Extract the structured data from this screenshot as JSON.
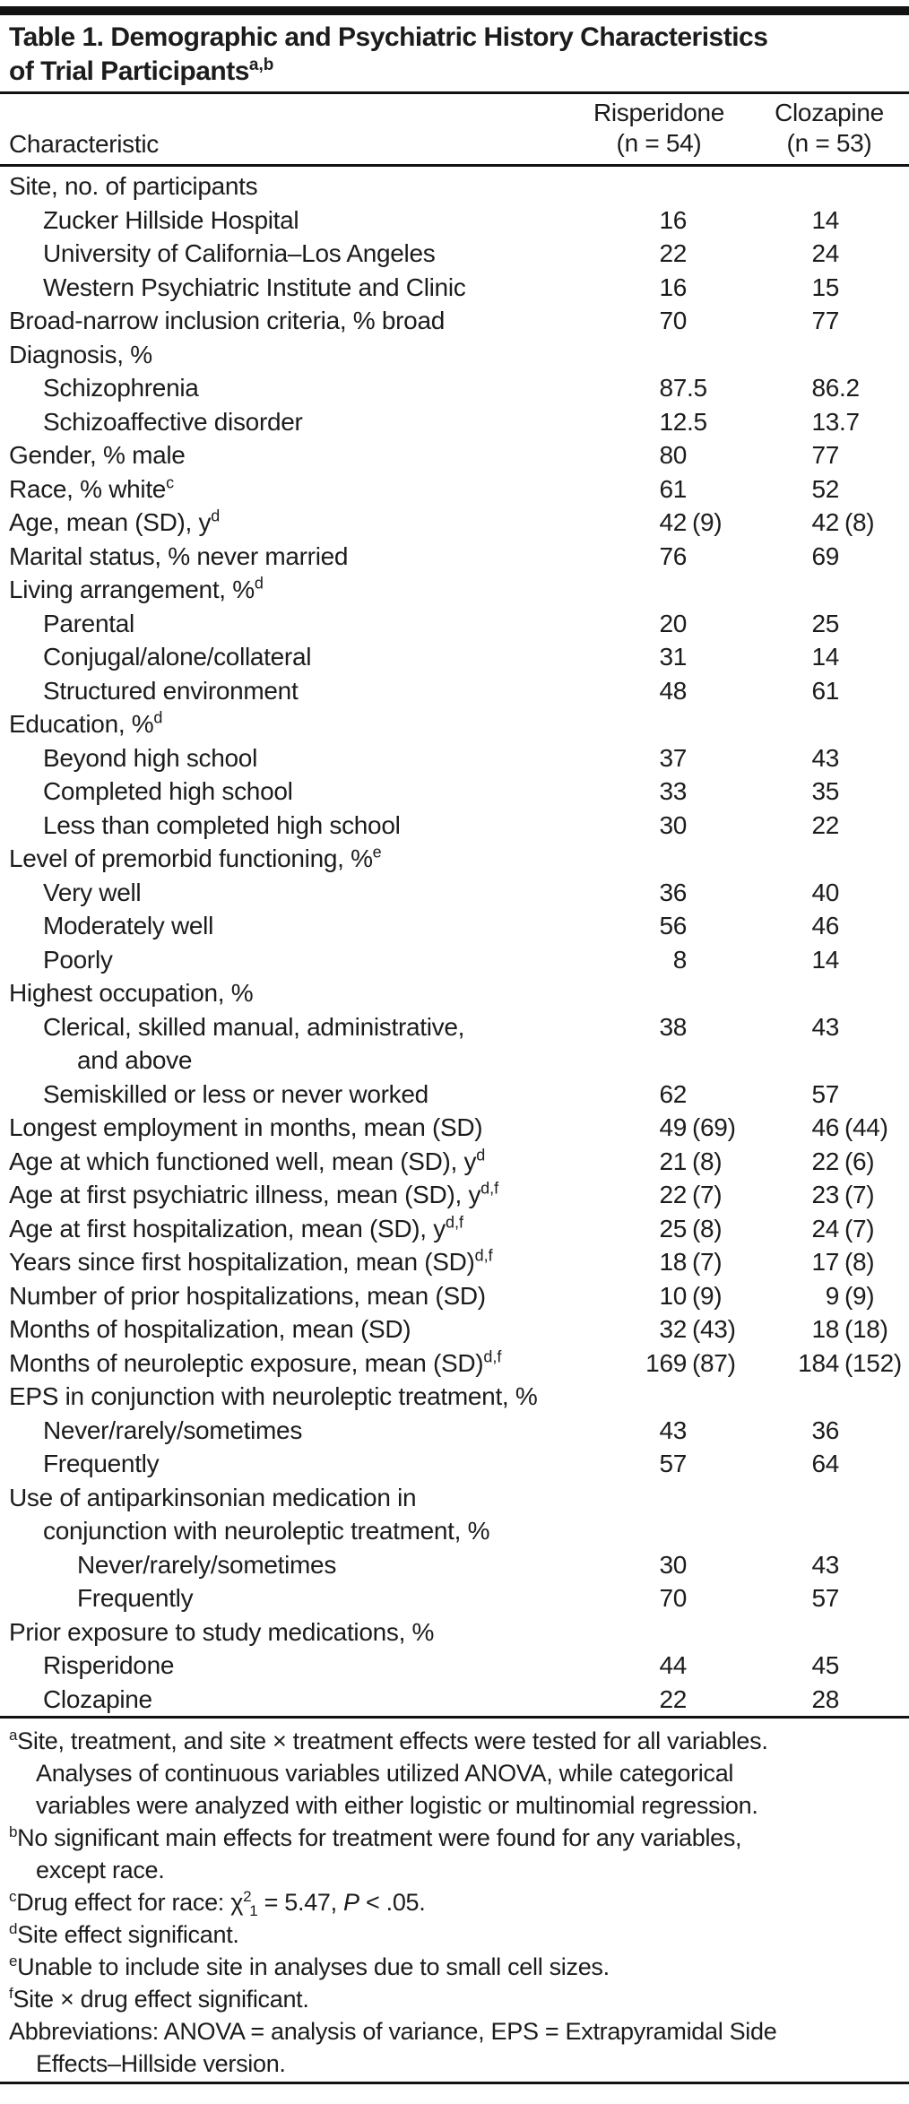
{
  "title": {
    "line1": "Table 1. Demographic and Psychiatric History Characteristics",
    "line2": "of Trial Participants",
    "sup": "a,b"
  },
  "header": {
    "characteristic": "Characteristic",
    "col1": {
      "name": "Risperidone",
      "n": "(n = 54)"
    },
    "col2": {
      "name": "Clozapine",
      "n": "(n = 53)"
    }
  },
  "table": {
    "rows": [
      {
        "label": "Site, no. of participants",
        "indent": 0,
        "r": "",
        "c": ""
      },
      {
        "label": "Zucker Hillside Hospital",
        "indent": 1,
        "r": "16",
        "c": "14"
      },
      {
        "label": "University of California–Los Angeles",
        "indent": 1,
        "r": "22",
        "c": "24"
      },
      {
        "label": "Western Psychiatric Institute and Clinic",
        "indent": 1,
        "r": "16",
        "c": "15"
      },
      {
        "label": "Broad-narrow inclusion criteria, % broad",
        "indent": 0,
        "r": "70",
        "c": "77"
      },
      {
        "label": "Diagnosis, %",
        "indent": 0,
        "r": "",
        "c": ""
      },
      {
        "label": "Schizophrenia",
        "indent": 1,
        "r": "87.5",
        "c": "86.2"
      },
      {
        "label": "Schizoaffective disorder",
        "indent": 1,
        "r": "12.5",
        "c": "13.7"
      },
      {
        "label": "Gender, % male",
        "indent": 0,
        "r": "80",
        "c": "77"
      },
      {
        "label": "Race, % white",
        "sup": "c",
        "indent": 0,
        "r": "61",
        "c": "52"
      },
      {
        "label": "Age, mean (SD), y",
        "sup": "d",
        "indent": 0,
        "r": "42 (9)",
        "c": "42 (8)"
      },
      {
        "label": "Marital status, % never married",
        "indent": 0,
        "r": "76",
        "c": "69"
      },
      {
        "label": "Living arrangement, %",
        "sup": "d",
        "indent": 0,
        "r": "",
        "c": ""
      },
      {
        "label": "Parental",
        "indent": 1,
        "r": "20",
        "c": "25"
      },
      {
        "label": "Conjugal/alone/collateral",
        "indent": 1,
        "r": "31",
        "c": "14"
      },
      {
        "label": "Structured environment",
        "indent": 1,
        "r": "48",
        "c": "61"
      },
      {
        "label": "Education, %",
        "sup": "d",
        "indent": 0,
        "r": "",
        "c": ""
      },
      {
        "label": "Beyond high school",
        "indent": 1,
        "r": "37",
        "c": "43"
      },
      {
        "label": "Completed high school",
        "indent": 1,
        "r": "33",
        "c": "35"
      },
      {
        "label": "Less than completed high school",
        "indent": 1,
        "r": "30",
        "c": "22"
      },
      {
        "label": "Level of premorbid functioning, %",
        "sup": "e",
        "indent": 0,
        "r": "",
        "c": ""
      },
      {
        "label": "Very well",
        "indent": 1,
        "r": "36",
        "c": "40"
      },
      {
        "label": "Moderately well",
        "indent": 1,
        "r": "56",
        "c": "46"
      },
      {
        "label": "Poorly",
        "indent": 1,
        "r": "8",
        "c": "14"
      },
      {
        "label": "Highest occupation, %",
        "indent": 0,
        "r": "",
        "c": ""
      },
      {
        "label": "Clerical, skilled manual, administrative,",
        "indent": 1,
        "r": "38",
        "c": "43",
        "wrap": {
          "text": "and above",
          "indent": 2
        }
      },
      {
        "label": "Semiskilled or less or never worked",
        "indent": 1,
        "r": "62",
        "c": "57"
      },
      {
        "label": "Longest employment in months, mean (SD)",
        "indent": 0,
        "r": "49 (69)",
        "c": "46 (44)"
      },
      {
        "label": "Age at which functioned well, mean (SD), y",
        "sup": "d",
        "indent": 0,
        "r": "21 (8)",
        "c": "22 (6)"
      },
      {
        "label": "Age at first psychiatric illness, mean (SD), y",
        "sup": "d,f",
        "indent": 0,
        "r": "22 (7)",
        "c": "23 (7)"
      },
      {
        "label": "Age at first hospitalization, mean (SD), y",
        "sup": "d,f",
        "indent": 0,
        "r": "25 (8)",
        "c": "24 (7)"
      },
      {
        "label": "Years since first hospitalization, mean (SD)",
        "sup": "d,f",
        "indent": 0,
        "r": "18 (7)",
        "c": "17 (8)"
      },
      {
        "label": "Number of prior hospitalizations, mean (SD)",
        "indent": 0,
        "r": "10 (9)",
        "c": "9 (9)"
      },
      {
        "label": "Months of hospitalization, mean (SD)",
        "indent": 0,
        "r": "32 (43)",
        "c": "18 (18)"
      },
      {
        "label": "Months of neuroleptic exposure, mean (SD)",
        "sup": "d,f",
        "indent": 0,
        "r": "169 (87)",
        "c": "184 (152)"
      },
      {
        "label": "EPS in conjunction with neuroleptic treatment, %",
        "indent": 0,
        "r": "",
        "c": ""
      },
      {
        "label": "Never/rarely/sometimes",
        "indent": 1,
        "r": "43",
        "c": "36"
      },
      {
        "label": "Frequently",
        "indent": 1,
        "r": "57",
        "c": "64"
      },
      {
        "label": "Use of antiparkinsonian medication in",
        "indent": 0,
        "r": "",
        "c": "",
        "wrap": {
          "text": "conjunction with neuroleptic treatment, %",
          "indent": 1
        }
      },
      {
        "label": "Never/rarely/sometimes",
        "indent": 2,
        "r": "30",
        "c": "43"
      },
      {
        "label": "Frequently",
        "indent": 2,
        "r": "70",
        "c": "57"
      },
      {
        "label": "Prior exposure to study medications, %",
        "indent": 0,
        "r": "",
        "c": ""
      },
      {
        "label": "Risperidone",
        "indent": 1,
        "r": "44",
        "c": "45"
      },
      {
        "label": "Clozapine",
        "indent": 1,
        "r": "22",
        "c": "28"
      }
    ]
  },
  "footnotes": {
    "a": {
      "marker": "a",
      "lines": [
        "Site, treatment, and site × treatment effects were tested for all variables.",
        "Analyses of continuous variables utilized ANOVA, while categorical",
        "variables were analyzed with either logistic or multinomial regression."
      ]
    },
    "b": {
      "marker": "b",
      "lines": [
        "No significant main effects for treatment were found for any variables,",
        "except race."
      ]
    },
    "c": {
      "marker": "c",
      "pre": "Drug effect for race: χ",
      "sup2": "2",
      "sub1": "1",
      "mid": " = 5.47, ",
      "p": "P",
      "post": " < .05."
    },
    "d": {
      "marker": "d",
      "lines": [
        "Site effect significant."
      ]
    },
    "e": {
      "marker": "e",
      "lines": [
        "Unable to include site in analyses due to small cell sizes."
      ]
    },
    "f": {
      "marker": "f",
      "lines": [
        "Site × drug effect significant."
      ]
    },
    "abbrev": {
      "lines": [
        "Abbreviations: ANOVA = analysis of variance, EPS = Extrapyramidal Side",
        "Effects–Hillside version."
      ]
    }
  },
  "colors": {
    "text": "#1c1c1c",
    "rule": "#121212",
    "background": "#ffffff"
  }
}
